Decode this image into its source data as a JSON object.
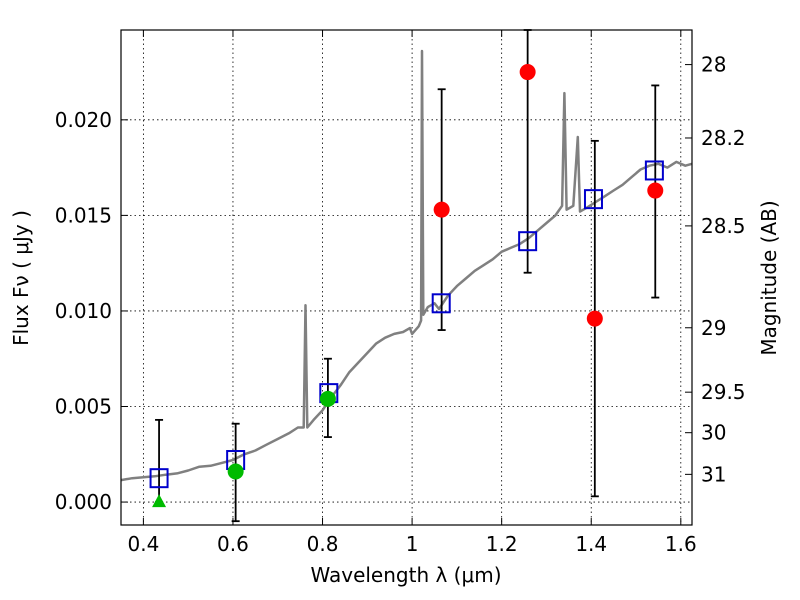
{
  "chart_data": {
    "type": "scatter",
    "xlabel": "Wavelength  λ (μm)",
    "ylabel": "Flux  Fν  ( μJy )",
    "ylabel_right": "Magnitude (AB)",
    "xlim": [
      0.35,
      1.625
    ],
    "ylim": [
      -0.0012,
      0.0247
    ],
    "grid": true,
    "x_ticks": [
      0.4,
      0.6,
      0.8,
      1.0,
      1.2,
      1.4,
      1.6
    ],
    "x_tick_labels": [
      "0.4",
      "0.6",
      "0.8",
      "1",
      "1.2",
      "1.4",
      "1.6"
    ],
    "y_ticks": [
      0.0,
      0.005,
      0.01,
      0.015,
      0.02
    ],
    "y_tick_labels": [
      "0.000",
      "0.005",
      "0.010",
      "0.015",
      "0.020"
    ],
    "right_ticks": [
      {
        "label": "28",
        "flux": 0.02289
      },
      {
        "label": "28.2",
        "flux": 0.01905
      },
      {
        "label": "28.5",
        "flux": 0.01445
      },
      {
        "label": "29",
        "flux": 0.00912
      },
      {
        "label": "29.5",
        "flux": 0.00575
      },
      {
        "label": "30",
        "flux": 0.00363
      },
      {
        "label": "31",
        "flux": 0.00145
      }
    ],
    "colors": {
      "spectrum": "#808080",
      "model_box": "#0000cc",
      "detection": "#ff0000",
      "green_point": "#00bb00",
      "errorbar": "#000000"
    },
    "spectrum": [
      [
        0.35,
        0.00115
      ],
      [
        0.375,
        0.00125
      ],
      [
        0.4,
        0.0013
      ],
      [
        0.425,
        0.00135
      ],
      [
        0.45,
        0.00143
      ],
      [
        0.475,
        0.0015
      ],
      [
        0.5,
        0.00165
      ],
      [
        0.525,
        0.00185
      ],
      [
        0.55,
        0.0019
      ],
      [
        0.575,
        0.00205
      ],
      [
        0.6,
        0.0022
      ],
      [
        0.625,
        0.0025
      ],
      [
        0.65,
        0.0027
      ],
      [
        0.675,
        0.003
      ],
      [
        0.7,
        0.0033
      ],
      [
        0.725,
        0.0036
      ],
      [
        0.745,
        0.0039
      ],
      [
        0.758,
        0.0039
      ],
      [
        0.762,
        0.0103
      ],
      [
        0.766,
        0.0039
      ],
      [
        0.78,
        0.0043
      ],
      [
        0.8,
        0.0048
      ],
      [
        0.82,
        0.0055
      ],
      [
        0.84,
        0.0061
      ],
      [
        0.86,
        0.0068
      ],
      [
        0.88,
        0.0073
      ],
      [
        0.9,
        0.0078
      ],
      [
        0.92,
        0.0083
      ],
      [
        0.94,
        0.0086
      ],
      [
        0.96,
        0.0088
      ],
      [
        0.98,
        0.0089
      ],
      [
        0.995,
        0.0091
      ],
      [
        1.0,
        0.0088
      ],
      [
        1.015,
        0.0092
      ],
      [
        1.02,
        0.0095
      ],
      [
        1.022,
        0.0236
      ],
      [
        1.025,
        0.0098
      ],
      [
        1.035,
        0.0102
      ],
      [
        1.05,
        0.0104
      ],
      [
        1.06,
        0.0101
      ],
      [
        1.08,
        0.0108
      ],
      [
        1.1,
        0.0113
      ],
      [
        1.12,
        0.0117
      ],
      [
        1.14,
        0.0121
      ],
      [
        1.16,
        0.0124
      ],
      [
        1.18,
        0.0127
      ],
      [
        1.2,
        0.0131
      ],
      [
        1.22,
        0.0133
      ],
      [
        1.24,
        0.0135
      ],
      [
        1.26,
        0.0138
      ],
      [
        1.28,
        0.0142
      ],
      [
        1.3,
        0.0146
      ],
      [
        1.32,
        0.015
      ],
      [
        1.335,
        0.0155
      ],
      [
        1.34,
        0.0214
      ],
      [
        1.345,
        0.0153
      ],
      [
        1.36,
        0.0155
      ],
      [
        1.37,
        0.0191
      ],
      [
        1.375,
        0.0152
      ],
      [
        1.39,
        0.0154
      ],
      [
        1.41,
        0.0157
      ],
      [
        1.43,
        0.016
      ],
      [
        1.45,
        0.0163
      ],
      [
        1.47,
        0.0166
      ],
      [
        1.49,
        0.017
      ],
      [
        1.51,
        0.0174
      ],
      [
        1.53,
        0.0176
      ],
      [
        1.55,
        0.0177
      ],
      [
        1.57,
        0.0175
      ],
      [
        1.59,
        0.0178
      ],
      [
        1.61,
        0.0176
      ],
      [
        1.625,
        0.0177
      ]
    ],
    "series": [
      {
        "marker": "square",
        "points": [
          {
            "x": 0.435,
            "y": 0.00125
          },
          {
            "x": 0.606,
            "y": 0.0022
          },
          {
            "x": 0.814,
            "y": 0.0057
          },
          {
            "x": 1.065,
            "y": 0.0104
          },
          {
            "x": 1.258,
            "y": 0.01365
          },
          {
            "x": 1.405,
            "y": 0.01585
          },
          {
            "x": 1.541,
            "y": 0.01735
          }
        ]
      },
      {
        "marker": "circle",
        "points": [
          {
            "x": 1.066,
            "y": 0.0153,
            "lo": 0.009,
            "hi": 0.0216
          },
          {
            "x": 1.258,
            "y": 0.0225,
            "lo": 0.012,
            "hi": 0.0247
          },
          {
            "x": 1.408,
            "y": 0.0096,
            "lo": 0.0003,
            "hi": 0.0189
          },
          {
            "x": 1.543,
            "y": 0.0163,
            "lo": 0.0107,
            "hi": 0.0218
          }
        ]
      },
      {
        "marker": "circle",
        "points": [
          {
            "x": 0.606,
            "y": 0.0016,
            "lo": -0.001,
            "hi": 0.0041
          },
          {
            "x": 0.812,
            "y": 0.0054,
            "lo": 0.0034,
            "hi": 0.0075
          }
        ]
      },
      {
        "marker": "triangle",
        "points": [
          {
            "x": 0.435,
            "y": 0.0,
            "lo": 0.0,
            "hi": 0.0043
          }
        ]
      }
    ]
  }
}
